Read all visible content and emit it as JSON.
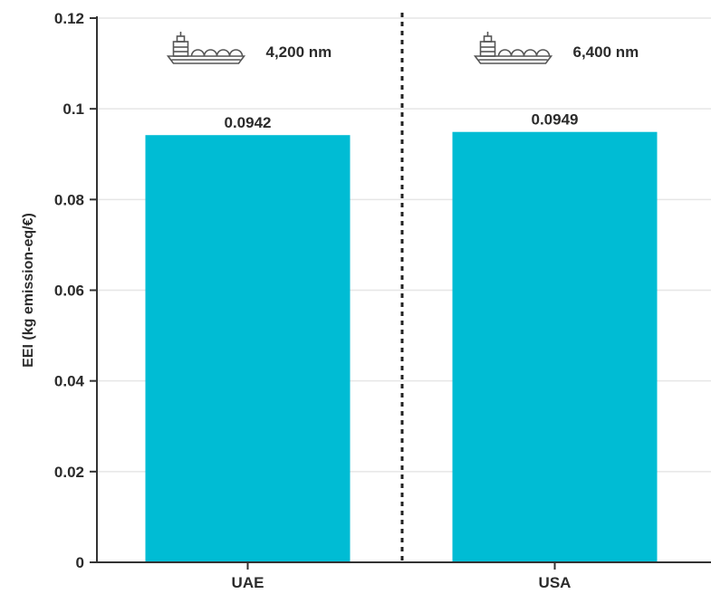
{
  "chart_data": {
    "type": "bar",
    "categories": [
      "UAE",
      "USA"
    ],
    "values": [
      0.0942,
      0.0949
    ],
    "data_labels": [
      "0.0942",
      "0.0949"
    ],
    "xlabel": "",
    "ylabel": "EEI (kg emission-eq/€)",
    "ylim": [
      0,
      0.12
    ],
    "yticks": [
      0,
      0.02,
      0.04,
      0.06,
      0.08,
      0.1,
      0.12
    ],
    "ytick_labels": [
      "0",
      "0.02",
      "0.04",
      "0.06",
      "0.08",
      "0.1",
      "0.12"
    ],
    "grid": "horizontal",
    "annotations": [
      {
        "category": "UAE",
        "icon": "lng-ship-icon",
        "text": "4,200 nm"
      },
      {
        "category": "USA",
        "icon": "lng-ship-icon",
        "text": "6,400 nm"
      }
    ],
    "divider": "dotted",
    "colors": {
      "bar": "#00bcd4",
      "grid": "#e6e6e6",
      "axis": "#333333",
      "divider": "#222222"
    }
  }
}
